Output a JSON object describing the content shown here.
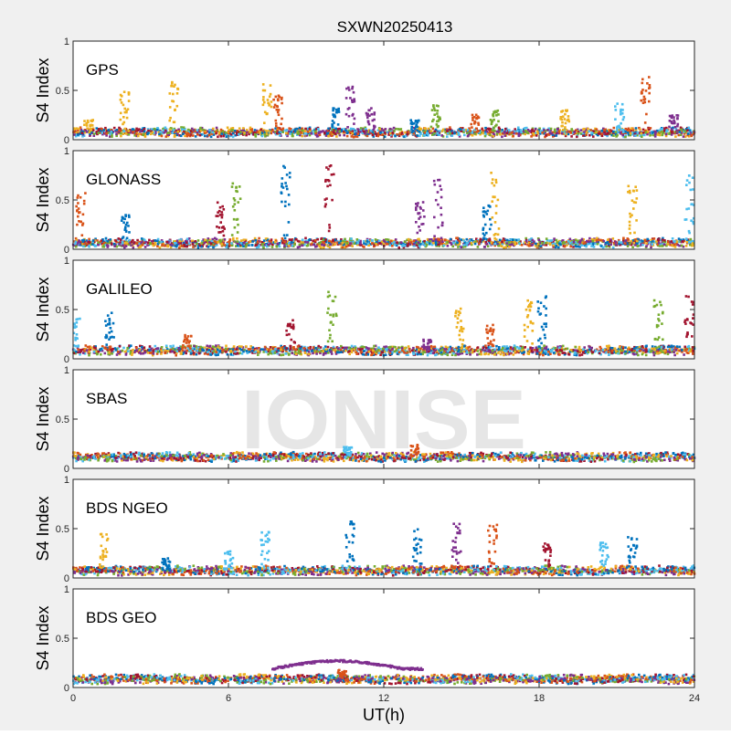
{
  "figure_title": "SXWN20250413",
  "watermark": "IONISE",
  "chart_data": {
    "type": "scatter",
    "xlabel": "UT(h)",
    "ylabel": "S4 Index",
    "xlim": [
      0,
      24
    ],
    "ylim": [
      0,
      1
    ],
    "x_ticks": [
      "0",
      "6",
      "12",
      "18",
      "24"
    ],
    "y_ticks": [
      "0",
      "0.5",
      "1"
    ],
    "grid": false,
    "colors": [
      "#0072BD",
      "#D95319",
      "#EDB120",
      "#7E2F8E",
      "#77AC30",
      "#4DBEEE",
      "#A2142F"
    ],
    "panels": [
      {
        "name": "GPS",
        "baseline": 0.07,
        "spikes": [
          {
            "x": 0.6,
            "y": 0.2,
            "c": 2
          },
          {
            "x": 2.0,
            "y": 0.5,
            "c": 2
          },
          {
            "x": 3.9,
            "y": 0.6,
            "c": 2
          },
          {
            "x": 7.5,
            "y": 0.58,
            "c": 2
          },
          {
            "x": 7.9,
            "y": 0.45,
            "c": 1
          },
          {
            "x": 10.1,
            "y": 0.32,
            "c": 0
          },
          {
            "x": 10.7,
            "y": 0.55,
            "c": 3
          },
          {
            "x": 11.5,
            "y": 0.32,
            "c": 3
          },
          {
            "x": 13.2,
            "y": 0.2,
            "c": 0
          },
          {
            "x": 14.0,
            "y": 0.35,
            "c": 4
          },
          {
            "x": 15.5,
            "y": 0.28,
            "c": 1
          },
          {
            "x": 16.3,
            "y": 0.3,
            "c": 4
          },
          {
            "x": 19.0,
            "y": 0.3,
            "c": 2
          },
          {
            "x": 21.1,
            "y": 0.38,
            "c": 5
          },
          {
            "x": 22.1,
            "y": 0.65,
            "c": 1
          },
          {
            "x": 23.2,
            "y": 0.25,
            "c": 3
          }
        ]
      },
      {
        "name": "GLONASS",
        "baseline": 0.06,
        "spikes": [
          {
            "x": 0.3,
            "y": 0.6,
            "c": 1
          },
          {
            "x": 2.0,
            "y": 0.35,
            "c": 0
          },
          {
            "x": 5.7,
            "y": 0.48,
            "c": 6
          },
          {
            "x": 6.3,
            "y": 0.7,
            "c": 4
          },
          {
            "x": 8.2,
            "y": 0.85,
            "c": 0
          },
          {
            "x": 9.9,
            "y": 0.85,
            "c": 6
          },
          {
            "x": 14.1,
            "y": 0.8,
            "c": 3
          },
          {
            "x": 13.4,
            "y": 0.5,
            "c": 3
          },
          {
            "x": 16.3,
            "y": 0.78,
            "c": 2
          },
          {
            "x": 16.0,
            "y": 0.45,
            "c": 0
          },
          {
            "x": 21.6,
            "y": 0.65,
            "c": 2
          },
          {
            "x": 23.8,
            "y": 0.78,
            "c": 5
          }
        ]
      },
      {
        "name": "GALILEO",
        "baseline": 0.08,
        "spikes": [
          {
            "x": 0.1,
            "y": 0.42,
            "c": 5
          },
          {
            "x": 1.4,
            "y": 0.48,
            "c": 0
          },
          {
            "x": 4.4,
            "y": 0.25,
            "c": 1
          },
          {
            "x": 8.4,
            "y": 0.4,
            "c": 6
          },
          {
            "x": 10.0,
            "y": 0.68,
            "c": 4
          },
          {
            "x": 13.7,
            "y": 0.2,
            "c": 3
          },
          {
            "x": 14.9,
            "y": 0.52,
            "c": 2
          },
          {
            "x": 16.1,
            "y": 0.35,
            "c": 1
          },
          {
            "x": 17.6,
            "y": 0.6,
            "c": 2
          },
          {
            "x": 18.1,
            "y": 0.65,
            "c": 0
          },
          {
            "x": 22.6,
            "y": 0.6,
            "c": 4
          },
          {
            "x": 23.8,
            "y": 0.65,
            "c": 6
          }
        ]
      },
      {
        "name": "SBAS",
        "baseline": 0.11,
        "spikes": [
          {
            "x": 10.6,
            "y": 0.22,
            "c": 5
          },
          {
            "x": 13.2,
            "y": 0.24,
            "c": 1
          }
        ]
      },
      {
        "name": "BDS NGEO",
        "baseline": 0.07,
        "spikes": [
          {
            "x": 1.2,
            "y": 0.5,
            "c": 2
          },
          {
            "x": 3.6,
            "y": 0.2,
            "c": 0
          },
          {
            "x": 6.0,
            "y": 0.28,
            "c": 5
          },
          {
            "x": 7.4,
            "y": 0.47,
            "c": 5
          },
          {
            "x": 10.7,
            "y": 0.58,
            "c": 0
          },
          {
            "x": 13.3,
            "y": 0.5,
            "c": 0
          },
          {
            "x": 14.8,
            "y": 0.55,
            "c": 3
          },
          {
            "x": 16.2,
            "y": 0.55,
            "c": 1
          },
          {
            "x": 18.3,
            "y": 0.35,
            "c": 6
          },
          {
            "x": 20.5,
            "y": 0.36,
            "c": 5
          },
          {
            "x": 21.6,
            "y": 0.42,
            "c": 0
          }
        ]
      },
      {
        "name": "BDS GEO",
        "baseline": 0.08,
        "spikes": [
          {
            "x": 10.4,
            "y": 0.18,
            "c": 1
          }
        ],
        "arc": {
          "x0": 7.7,
          "x1": 13.5,
          "peak": 0.27,
          "c": 3
        }
      }
    ]
  }
}
